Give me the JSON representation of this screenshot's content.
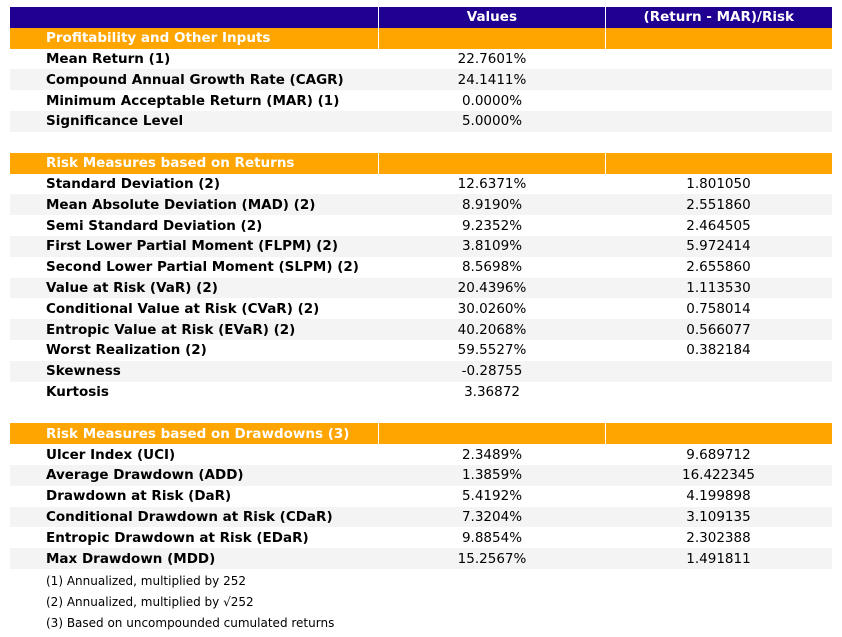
{
  "header": {
    "col1": "",
    "col2": "Values",
    "col3": "(Return - MAR)/Risk"
  },
  "sections": [
    {
      "title": "Profitability and Other Inputs",
      "rows": [
        {
          "label": "Mean Return (1)",
          "value": "22.7601%",
          "ratio": ""
        },
        {
          "label": "Compound Annual Growth Rate (CAGR)",
          "value": "24.1411%",
          "ratio": ""
        },
        {
          "label": "Minimum Acceptable Return (MAR) (1)",
          "value": "0.0000%",
          "ratio": ""
        },
        {
          "label": "Significance Level",
          "value": "5.0000%",
          "ratio": ""
        }
      ]
    },
    {
      "title": "Risk Measures based on Returns",
      "rows": [
        {
          "label": "Standard Deviation (2)",
          "value": "12.6371%",
          "ratio": "1.801050"
        },
        {
          "label": "Mean Absolute Deviation (MAD) (2)",
          "value": "8.9190%",
          "ratio": "2.551860"
        },
        {
          "label": "Semi Standard Deviation (2)",
          "value": "9.2352%",
          "ratio": "2.464505"
        },
        {
          "label": "First Lower Partial Moment (FLPM) (2)",
          "value": "3.8109%",
          "ratio": "5.972414"
        },
        {
          "label": "Second Lower Partial Moment (SLPM) (2)",
          "value": "8.5698%",
          "ratio": "2.655860"
        },
        {
          "label": "Value at Risk (VaR) (2)",
          "value": "20.4396%",
          "ratio": "1.113530"
        },
        {
          "label": "Conditional Value at Risk (CVaR) (2)",
          "value": "30.0260%",
          "ratio": "0.758014"
        },
        {
          "label": "Entropic Value at Risk (EVaR) (2)",
          "value": "40.2068%",
          "ratio": "0.566077"
        },
        {
          "label": "Worst Realization (2)",
          "value": "59.5527%",
          "ratio": "0.382184"
        },
        {
          "label": "Skewness",
          "value": "-0.28755",
          "ratio": ""
        },
        {
          "label": "Kurtosis",
          "value": "3.36872",
          "ratio": ""
        }
      ]
    },
    {
      "title": "Risk Measures based on Drawdowns (3)",
      "rows": [
        {
          "label": "Ulcer Index (UCI)",
          "value": "2.3489%",
          "ratio": "9.689712"
        },
        {
          "label": "Average Drawdown (ADD)",
          "value": "1.3859%",
          "ratio": "16.422345"
        },
        {
          "label": "Drawdown at Risk (DaR)",
          "value": "5.4192%",
          "ratio": "4.199898"
        },
        {
          "label": "Conditional Drawdown at Risk (CDaR)",
          "value": "7.3204%",
          "ratio": "3.109135"
        },
        {
          "label": "Entropic Drawdown at Risk (EDaR)",
          "value": "9.8854%",
          "ratio": "2.302388"
        },
        {
          "label": "Max Drawdown (MDD)",
          "value": "15.2567%",
          "ratio": "1.491811"
        }
      ]
    }
  ],
  "notes": [
    "(1) Annualized, multiplied by 252",
    "(2) Annualized, multiplied by √252",
    "(3) Based on uncompounded cumulated returns"
  ],
  "colors": {
    "header_bg": "#1f0090",
    "section_bg": "#ffa500",
    "alt_row_bg": "#f4f4f4"
  }
}
